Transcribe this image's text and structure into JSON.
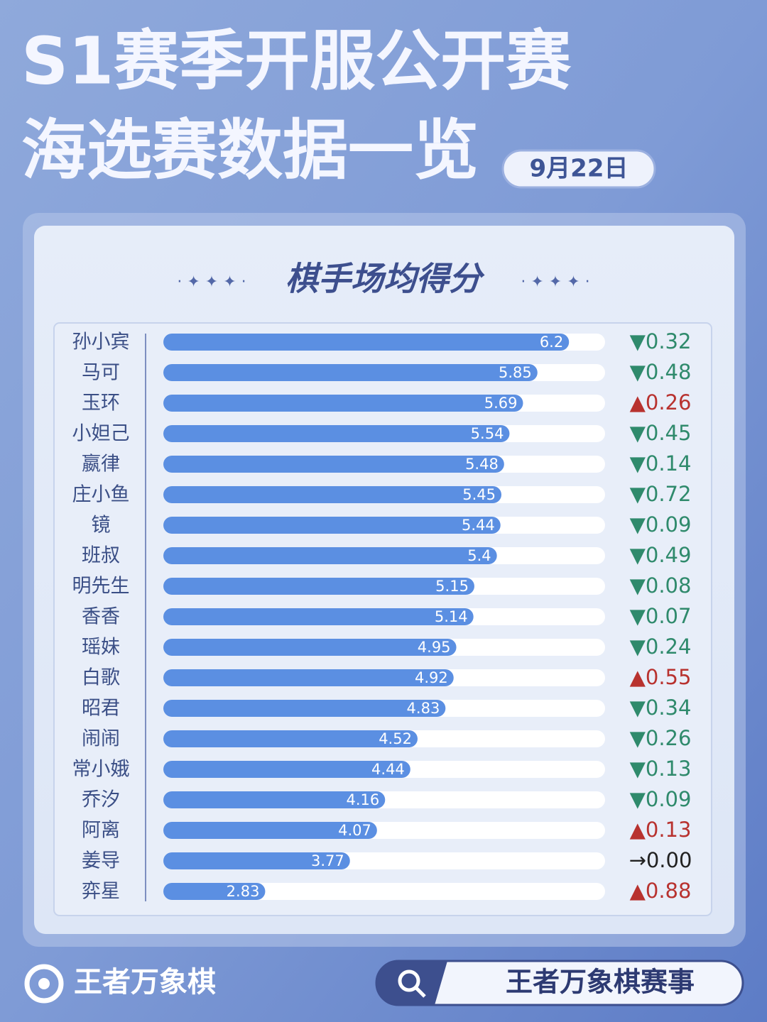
{
  "header": {
    "title_line1": "S1赛季开服公开赛",
    "title_line2": "海选赛数据一览",
    "date": "9月22日"
  },
  "chart_data": {
    "type": "bar",
    "title": "棋手场均得分",
    "categories": [
      "孙小宾",
      "马可",
      "玉环",
      "小妲己",
      "嬴律",
      "庄小鱼",
      "镜",
      "班叔",
      "明先生",
      "香香",
      "瑶妹",
      "白歌",
      "昭君",
      "闹闹",
      "常小娥",
      "乔汐",
      "阿离",
      "姜导",
      "弈星"
    ],
    "values": [
      6.2,
      5.85,
      5.69,
      5.54,
      5.48,
      5.45,
      5.44,
      5.4,
      5.15,
      5.14,
      4.95,
      4.92,
      4.83,
      4.52,
      4.44,
      4.16,
      4.07,
      3.77,
      2.83
    ],
    "change_labels": [
      "▼0.32",
      "▼0.48",
      "▲0.26",
      "▼0.45",
      "▼0.14",
      "▼0.72",
      "▼0.09",
      "▼0.49",
      "▼0.08",
      "▼0.07",
      "▼0.24",
      "▲0.55",
      "▼0.34",
      "▼0.26",
      "▼0.13",
      "▼0.09",
      "▲0.13",
      "→0.00",
      "▲0.88"
    ],
    "change_colors": [
      "#2f8a6c",
      "#2f8a6c",
      "#b8322f",
      "#2f8a6c",
      "#2f8a6c",
      "#2f8a6c",
      "#2f8a6c",
      "#2f8a6c",
      "#2f8a6c",
      "#2f8a6c",
      "#2f8a6c",
      "#b8322f",
      "#2f8a6c",
      "#2f8a6c",
      "#2f8a6c",
      "#2f8a6c",
      "#b8322f",
      "#222222",
      "#b8322f"
    ],
    "color": "#5b8fe2",
    "track_color": "#ffffff",
    "xlim": [
      1.7,
      6.6
    ]
  },
  "footer": {
    "brand": "王者万象棋",
    "search": "王者万象棋赛事"
  }
}
